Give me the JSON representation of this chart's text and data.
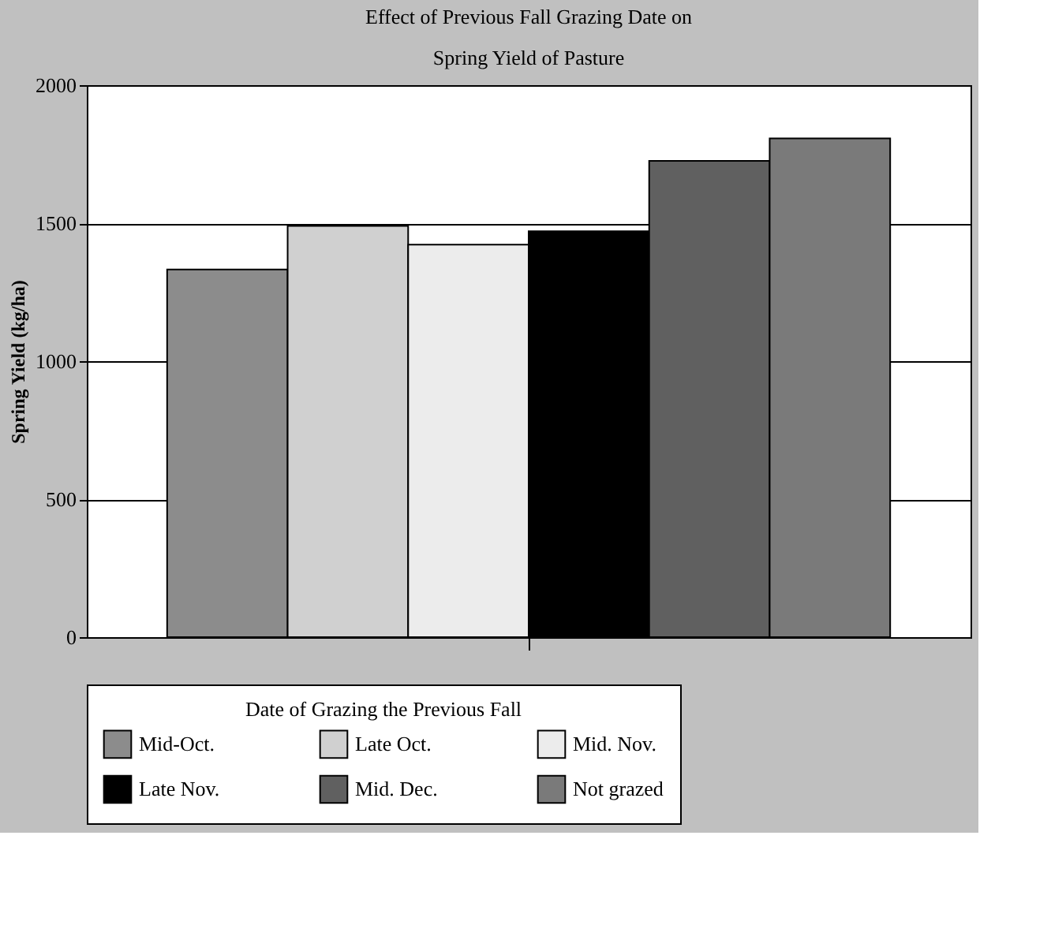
{
  "chart_data": {
    "type": "bar",
    "title": [
      "Effect of Previous Fall Grazing Date on",
      "Spring Yield of Pasture"
    ],
    "ylabel": "Spring Yield (kg/ha)",
    "legend_title": "Date of Grazing the Previous Fall",
    "categories": [
      null
    ],
    "series": [
      {
        "name": "Mid-Oct.",
        "color": "#8c8c8c",
        "values": [
          1332
        ]
      },
      {
        "name": "Late Oct.",
        "color": "#d0d0d0",
        "values": [
          1490
        ]
      },
      {
        "name": "Mid. Nov.",
        "color": "#ececec",
        "values": [
          1422
        ]
      },
      {
        "name": "Late Nov.",
        "color": "#000000",
        "values": [
          1471
        ]
      },
      {
        "name": "Mid. Dec.",
        "color": "#606060",
        "values": [
          1726
        ]
      },
      {
        "name": "Not grazed",
        "color": "#7a7a7a",
        "values": [
          1807
        ]
      }
    ],
    "ylim": [
      0,
      2000
    ],
    "yticks": [
      0,
      500,
      1000,
      1500,
      2000
    ],
    "grid": "y",
    "legend": "bottom"
  }
}
